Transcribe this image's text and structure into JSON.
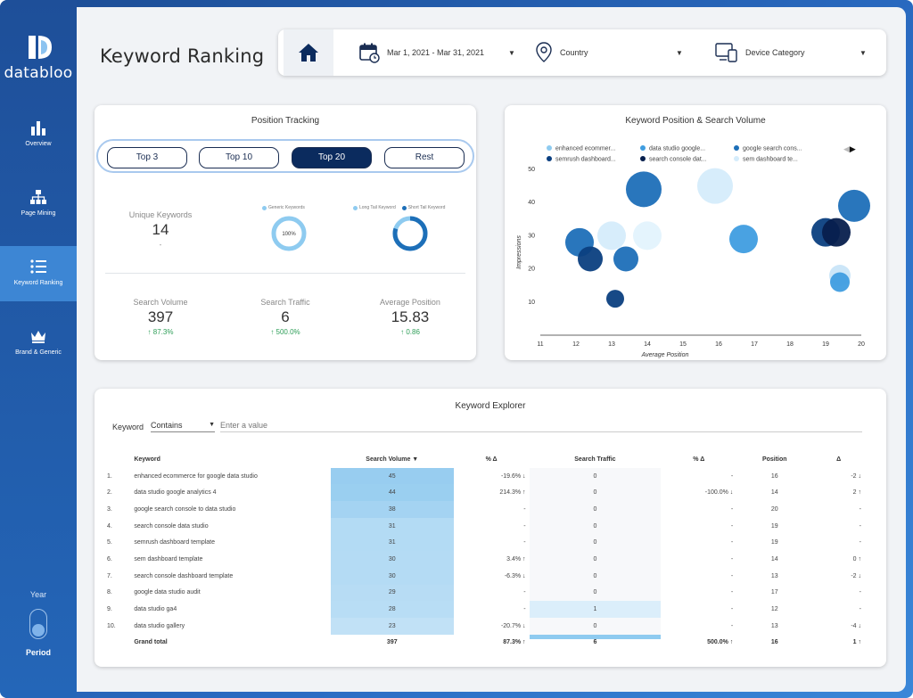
{
  "brand": {
    "name": "databloo"
  },
  "sidebar": {
    "items": [
      {
        "label": "Overview",
        "icon": "bar-chart-icon",
        "active": false
      },
      {
        "label": "Page Mining",
        "icon": "hierarchy-icon",
        "active": false
      },
      {
        "label": "Keyword Ranking",
        "icon": "list-icon",
        "active": true
      },
      {
        "label": "Brand & Generic",
        "icon": "crown-icon",
        "active": false
      }
    ],
    "year_label": "Year",
    "period_label": "Period"
  },
  "page": {
    "title": "Keyword Ranking"
  },
  "filters": {
    "home_icon": "home-icon",
    "date_range": "Mar 1, 2021 - Mar 31, 2021",
    "country": "Country",
    "device": "Device Category"
  },
  "position_tracking": {
    "title": "Position Tracking",
    "tabs": [
      {
        "label": "Top 3",
        "active": false
      },
      {
        "label": "Top 10",
        "active": false
      },
      {
        "label": "Top 20",
        "active": true
      },
      {
        "label": "Rest",
        "active": false
      }
    ],
    "unique_keywords": {
      "label": "Unique Keywords",
      "value": "14",
      "delta": "-"
    },
    "donut1": {
      "legend": [
        "Generic Keywords"
      ],
      "center": "100%",
      "fraction": 1.0,
      "colors": [
        "#8ecbf0"
      ]
    },
    "donut2": {
      "legend": [
        "Long Tail Keyword",
        "Short Tail Keyword"
      ],
      "fraction": 0.8,
      "colors": [
        "#8ecbf0",
        "#1d6fb8"
      ]
    },
    "kpis": [
      {
        "label": "Search Volume",
        "value": "397",
        "delta": "↑ 87.3%"
      },
      {
        "label": "Search Traffic",
        "value": "6",
        "delta": "↑ 500.0%"
      },
      {
        "label": "Average Position",
        "value": "15.83",
        "delta": "↑ 0.86"
      }
    ]
  },
  "chart_data": {
    "type": "scatter",
    "title": "Keyword Position & Search Volume",
    "xlabel": "Average Position",
    "ylabel": "Impressions",
    "xlim": [
      11,
      20
    ],
    "ylim": [
      0,
      50
    ],
    "xticks": [
      11,
      12,
      13,
      14,
      15,
      16,
      17,
      18,
      19,
      20
    ],
    "yticks": [
      10,
      20,
      30,
      40,
      50
    ],
    "legend": [
      {
        "name": "enhanced ecommer...",
        "color": "#8ecbf0"
      },
      {
        "name": "data studio google...",
        "color": "#3f9de0"
      },
      {
        "name": "google search cons...",
        "color": "#1d6fb8"
      },
      {
        "name": "semrush dashboard...",
        "color": "#0b3f80"
      },
      {
        "name": "search console dat...",
        "color": "#071f4d"
      },
      {
        "name": "sem dashboard te...",
        "color": "#d5ecfb"
      }
    ],
    "points": [
      {
        "x": 12.1,
        "y": 28,
        "size": 32,
        "color": "#1d6fb8"
      },
      {
        "x": 12.4,
        "y": 23,
        "size": 28,
        "color": "#0b3f80"
      },
      {
        "x": 13.0,
        "y": 30,
        "size": 32,
        "color": "#d5ecfb"
      },
      {
        "x": 13.4,
        "y": 23,
        "size": 28,
        "color": "#1d6fb8"
      },
      {
        "x": 13.1,
        "y": 11,
        "size": 20,
        "color": "#0b3f80"
      },
      {
        "x": 14.0,
        "y": 30,
        "size": 32,
        "color": "#e3f3fd"
      },
      {
        "x": 13.9,
        "y": 44,
        "size": 40,
        "color": "#1d6fb8"
      },
      {
        "x": 15.9,
        "y": 45,
        "size": 40,
        "color": "#d5ecfb"
      },
      {
        "x": 16.7,
        "y": 29,
        "size": 32,
        "color": "#3f9de0"
      },
      {
        "x": 19.0,
        "y": 31,
        "size": 32,
        "color": "#0b3f80"
      },
      {
        "x": 19.3,
        "y": 31,
        "size": 32,
        "color": "#071f4d"
      },
      {
        "x": 19.8,
        "y": 39,
        "size": 36,
        "color": "#1d6fb8"
      },
      {
        "x": 19.4,
        "y": 18,
        "size": 24,
        "color": "#c9e5f8"
      },
      {
        "x": 19.4,
        "y": 16,
        "size": 22,
        "color": "#3f9de0"
      }
    ]
  },
  "explorer": {
    "title": "Keyword Explorer",
    "filter_label": "Keyword",
    "filter_op": "Contains",
    "filter_placeholder": "Enter a value",
    "columns": [
      "",
      "Keyword",
      "Search Volume ▼",
      "% Δ",
      "Search Traffic",
      "% Δ",
      "Position",
      "Δ"
    ],
    "rows": [
      {
        "n": "1.",
        "kw": "enhanced ecommerce for google data studio",
        "sv": "45",
        "svf": 1.0,
        "svd": "-19.6% ↓",
        "st": "0",
        "stf": 0,
        "std": "-",
        "pos": "16",
        "pd": "-2 ↓"
      },
      {
        "n": "2.",
        "kw": "data studio google analytics 4",
        "sv": "44",
        "svf": 0.97,
        "svd": "214.3% ↑",
        "st": "0",
        "stf": 0,
        "std": "-100.0% ↓",
        "pos": "14",
        "pd": "2 ↑"
      },
      {
        "n": "3.",
        "kw": "google search console to data studio",
        "sv": "38",
        "svf": 0.82,
        "svd": "-",
        "st": "0",
        "stf": 0,
        "std": "-",
        "pos": "20",
        "pd": "-"
      },
      {
        "n": "4.",
        "kw": "search console data studio",
        "sv": "31",
        "svf": 0.62,
        "svd": "-",
        "st": "0",
        "stf": 0,
        "std": "-",
        "pos": "19",
        "pd": "-"
      },
      {
        "n": "5.",
        "kw": "semrush dashboard template",
        "sv": "31",
        "svf": 0.62,
        "svd": "-",
        "st": "0",
        "stf": 0,
        "std": "-",
        "pos": "19",
        "pd": "-"
      },
      {
        "n": "6.",
        "kw": "sem dashboard template",
        "sv": "30",
        "svf": 0.6,
        "svd": "3.4% ↑",
        "st": "0",
        "stf": 0,
        "std": "-",
        "pos": "14",
        "pd": "0 ↑"
      },
      {
        "n": "7.",
        "kw": "search console dashboard template",
        "sv": "30",
        "svf": 0.6,
        "svd": "-6.3% ↓",
        "st": "0",
        "stf": 0,
        "std": "-",
        "pos": "13",
        "pd": "-2 ↓"
      },
      {
        "n": "8.",
        "kw": "google data studio audit",
        "sv": "29",
        "svf": 0.57,
        "svd": "-",
        "st": "0",
        "stf": 0,
        "std": "-",
        "pos": "17",
        "pd": "-"
      },
      {
        "n": "9.",
        "kw": "data studio ga4",
        "sv": "28",
        "svf": 0.55,
        "svd": "-",
        "st": "1",
        "stf": 0.4,
        "std": "-",
        "pos": "12",
        "pd": "-"
      },
      {
        "n": "10.",
        "kw": "data studio gallery",
        "sv": "23",
        "svf": 0.42,
        "svd": "-20.7% ↓",
        "st": "0",
        "stf": 0,
        "std": "-",
        "pos": "13",
        "pd": "-4 ↓"
      }
    ],
    "total": {
      "label": "Grand total",
      "sv": "397",
      "svd": "87.3% ↑",
      "st": "6",
      "std": "500.0% ↑",
      "pos": "16",
      "pd": "1 ↑"
    }
  }
}
